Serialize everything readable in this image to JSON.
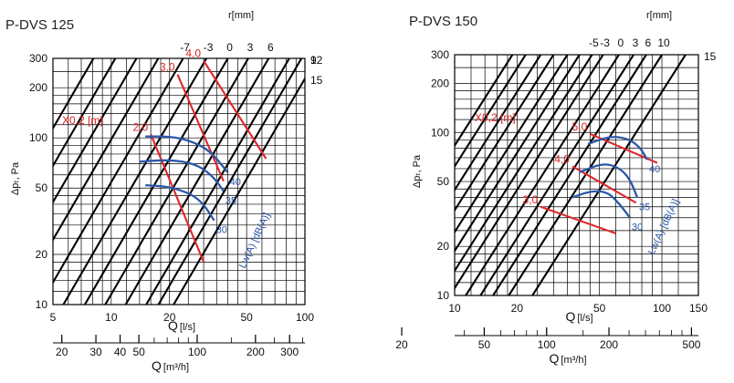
{
  "chart_data": [
    {
      "type": "line",
      "title": "P-DVS 125",
      "xlabel": "Q",
      "xlabel_unit": "[l/s]",
      "x2label": "Q",
      "x2label_unit": "[m³/h]",
      "ylabel": "Δpₜ, Pa",
      "r_label": "r[mm]",
      "x_scale": "log",
      "y_scale": "log",
      "xlim": [
        5,
        100
      ],
      "ylim": [
        10,
        300
      ],
      "x_ticks": [
        "5",
        "10",
        "20",
        "50",
        "100"
      ],
      "x_tick_values": [
        5,
        10,
        20,
        50,
        100
      ],
      "x2_ticks": [
        "20",
        "30",
        "40",
        "50",
        "100",
        "200",
        "300"
      ],
      "x2_tick_values": [
        20,
        30,
        40,
        50,
        100,
        200,
        300
      ],
      "y_ticks": [
        "10",
        "20",
        "50",
        "100",
        "200",
        "300"
      ],
      "y_tick_values": [
        10,
        20,
        50,
        100,
        200,
        300
      ],
      "system_lines": [
        {
          "label": "-7",
          "position": "top",
          "q_at_300": 23.5
        },
        {
          "label": "-3",
          "position": "top",
          "q_at_300": 31
        },
        {
          "label": "0",
          "position": "top",
          "q_at_300": 40
        },
        {
          "label": "3",
          "position": "top",
          "q_at_300": 51
        },
        {
          "label": "6",
          "position": "top",
          "q_at_300": 65
        },
        {
          "label": "9",
          "position": "right",
          "q_at_300": 83
        },
        {
          "label": "12",
          "position": "right",
          "q_at_300": 96
        },
        {
          "label": "15",
          "position": "right",
          "q_at_300": 115
        },
        {
          "label": "",
          "position": "none",
          "q_at_300": 17.5
        },
        {
          "label": "",
          "position": "none",
          "q_at_300": 13.5
        },
        {
          "label": "",
          "position": "none",
          "q_at_300": 10.5
        },
        {
          "label": "",
          "position": "none",
          "q_at_300": 8.1
        }
      ],
      "throw_label": "X0,2 [m]",
      "throw_lines": [
        {
          "label": "2,0",
          "points": [
            [
              16,
              105
            ],
            [
              30,
              18
            ]
          ]
        },
        {
          "label": "3,0",
          "points": [
            [
              22,
              240
            ],
            [
              38,
              55
            ]
          ]
        },
        {
          "label": "4,0",
          "points": [
            [
              30,
              290
            ],
            [
              63,
              75
            ]
          ]
        }
      ],
      "sound_label": "Lw(A) [dB(A)]",
      "sound_curves": [
        {
          "label": "30",
          "points": [
            [
              15,
              52
            ],
            [
              20,
              51
            ],
            [
              26,
              46
            ],
            [
              30,
              40
            ],
            [
              34,
              32
            ]
          ]
        },
        {
          "label": "35",
          "points": [
            [
              14,
              72
            ],
            [
              20,
              74
            ],
            [
              27,
              70
            ],
            [
              33,
              60
            ],
            [
              38,
              48
            ]
          ]
        },
        {
          "label": "40",
          "points": [
            [
              15,
              102
            ],
            [
              20,
              102
            ],
            [
              25,
              97
            ],
            [
              32,
              85
            ],
            [
              40,
              62
            ]
          ]
        }
      ]
    },
    {
      "type": "line",
      "title": "P-DVS 150",
      "xlabel": "Q",
      "xlabel_unit": "[l/s]",
      "x2label": "Q",
      "x2label_unit": "[m³/h]",
      "ylabel": "Δpₜ, Pa",
      "r_label": "r[mm]",
      "x_scale": "log",
      "y_scale": "log",
      "xlim": [
        10,
        150
      ],
      "ylim": [
        10,
        300
      ],
      "x_ticks": [
        "10",
        "20",
        "50",
        "100",
        "150"
      ],
      "x_tick_values": [
        10,
        20,
        50,
        100,
        150
      ],
      "x2_ticks": [
        "20",
        "50",
        "100",
        "200",
        "500"
      ],
      "x2_tick_values": [
        20,
        50,
        100,
        200,
        500
      ],
      "y_ticks": [
        "10",
        "20",
        "50",
        "100",
        "200",
        "300"
      ],
      "y_tick_values": [
        10,
        20,
        50,
        100,
        200,
        300
      ],
      "system_lines": [
        {
          "label": "-5",
          "position": "top",
          "q_at_300": 46
        },
        {
          "label": "-3",
          "position": "top",
          "q_at_300": 52
        },
        {
          "label": "0",
          "position": "top",
          "q_at_300": 62
        },
        {
          "label": "3",
          "position": "top",
          "q_at_300": 73
        },
        {
          "label": "6",
          "position": "top",
          "q_at_300": 84
        },
        {
          "label": "10",
          "position": "top",
          "q_at_300": 100
        },
        {
          "label": "15",
          "position": "right",
          "q_at_300": 130
        },
        {
          "label": "",
          "position": "none",
          "q_at_300": 40
        },
        {
          "label": "",
          "position": "none",
          "q_at_300": 35
        },
        {
          "label": "",
          "position": "none",
          "q_at_300": 30
        },
        {
          "label": "",
          "position": "none",
          "q_at_300": 26
        },
        {
          "label": "",
          "position": "none",
          "q_at_300": 22
        },
        {
          "label": "",
          "position": "none",
          "q_at_300": 19
        }
      ],
      "throw_label": "X0,2 [m]",
      "throw_lines": [
        {
          "label": "3,0",
          "points": [
            [
              26,
              35
            ],
            [
              60,
              24
            ]
          ]
        },
        {
          "label": "4,0",
          "points": [
            [
              37,
              62
            ],
            [
              75,
              37
            ]
          ]
        },
        {
          "label": "5,0",
          "points": [
            [
              45,
              98
            ],
            [
              95,
              65
            ]
          ]
        }
      ],
      "sound_label": "Lw(A) [dB(A)]",
      "sound_curves": [
        {
          "label": "30",
          "points": [
            [
              37,
              40
            ],
            [
              46,
              44
            ],
            [
              55,
              43
            ],
            [
              63,
              36
            ],
            [
              70,
              30
            ]
          ]
        },
        {
          "label": "35",
          "points": [
            [
              40,
              57
            ],
            [
              52,
              65
            ],
            [
              62,
              61
            ],
            [
              70,
              52
            ],
            [
              76,
              40
            ]
          ]
        },
        {
          "label": "40",
          "points": [
            [
              44,
              85
            ],
            [
              56,
              95
            ],
            [
              68,
              92
            ],
            [
              78,
              82
            ],
            [
              85,
              68
            ]
          ]
        }
      ]
    }
  ]
}
